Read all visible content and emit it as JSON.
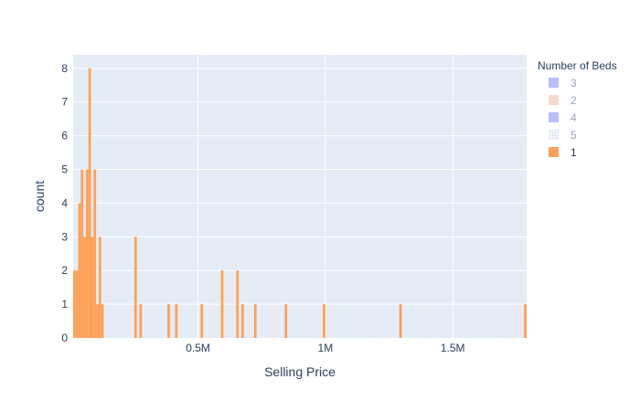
{
  "chart_data": {
    "type": "histogram",
    "xlabel": "Selling Price",
    "ylabel": "count",
    "x_range": [
      10000,
      1790000
    ],
    "y_range": [
      0,
      8.4
    ],
    "x_ticks": [
      {
        "value": 500000,
        "label": "0.5M"
      },
      {
        "value": 1000000,
        "label": "1M"
      },
      {
        "value": 1500000,
        "label": "1.5M"
      }
    ],
    "y_ticks": [
      0,
      1,
      2,
      3,
      4,
      5,
      6,
      7,
      8
    ],
    "bin_width": 10000,
    "grid": true,
    "legend": {
      "title": "Number of Beds",
      "placement": "right",
      "entries": [
        {
          "label": "3",
          "color": "#636efa",
          "state": "hidden",
          "pattern": "solid"
        },
        {
          "label": "2",
          "color": "#ef553b",
          "state": "hidden",
          "pattern": "hatched"
        },
        {
          "label": "4",
          "color": "#636efa",
          "state": "hidden",
          "pattern": "solid"
        },
        {
          "label": "5",
          "color": "#636efa",
          "state": "hidden",
          "pattern": "dotted"
        },
        {
          "label": "1",
          "color": "#fea15a",
          "state": "visible",
          "pattern": "solid"
        }
      ]
    },
    "series": [
      {
        "name": "1",
        "color": "#fea15a",
        "bins": [
          {
            "x0": 10000,
            "count": 2
          },
          {
            "x0": 20000,
            "count": 2
          },
          {
            "x0": 30000,
            "count": 4
          },
          {
            "x0": 40000,
            "count": 5
          },
          {
            "x0": 50000,
            "count": 3
          },
          {
            "x0": 60000,
            "count": 5
          },
          {
            "x0": 70000,
            "count": 8
          },
          {
            "x0": 80000,
            "count": 3
          },
          {
            "x0": 90000,
            "count": 5
          },
          {
            "x0": 100000,
            "count": 1
          },
          {
            "x0": 110000,
            "count": 3
          },
          {
            "x0": 120000,
            "count": 1
          },
          {
            "x0": 250000,
            "count": 3
          },
          {
            "x0": 270000,
            "count": 1
          },
          {
            "x0": 380000,
            "count": 1
          },
          {
            "x0": 410000,
            "count": 1
          },
          {
            "x0": 510000,
            "count": 1
          },
          {
            "x0": 590000,
            "count": 2
          },
          {
            "x0": 650000,
            "count": 2
          },
          {
            "x0": 670000,
            "count": 1
          },
          {
            "x0": 720000,
            "count": 1
          },
          {
            "x0": 840000,
            "count": 1
          },
          {
            "x0": 990000,
            "count": 1
          },
          {
            "x0": 1290000,
            "count": 1
          },
          {
            "x0": 1780000,
            "count": 1
          }
        ]
      }
    ]
  }
}
